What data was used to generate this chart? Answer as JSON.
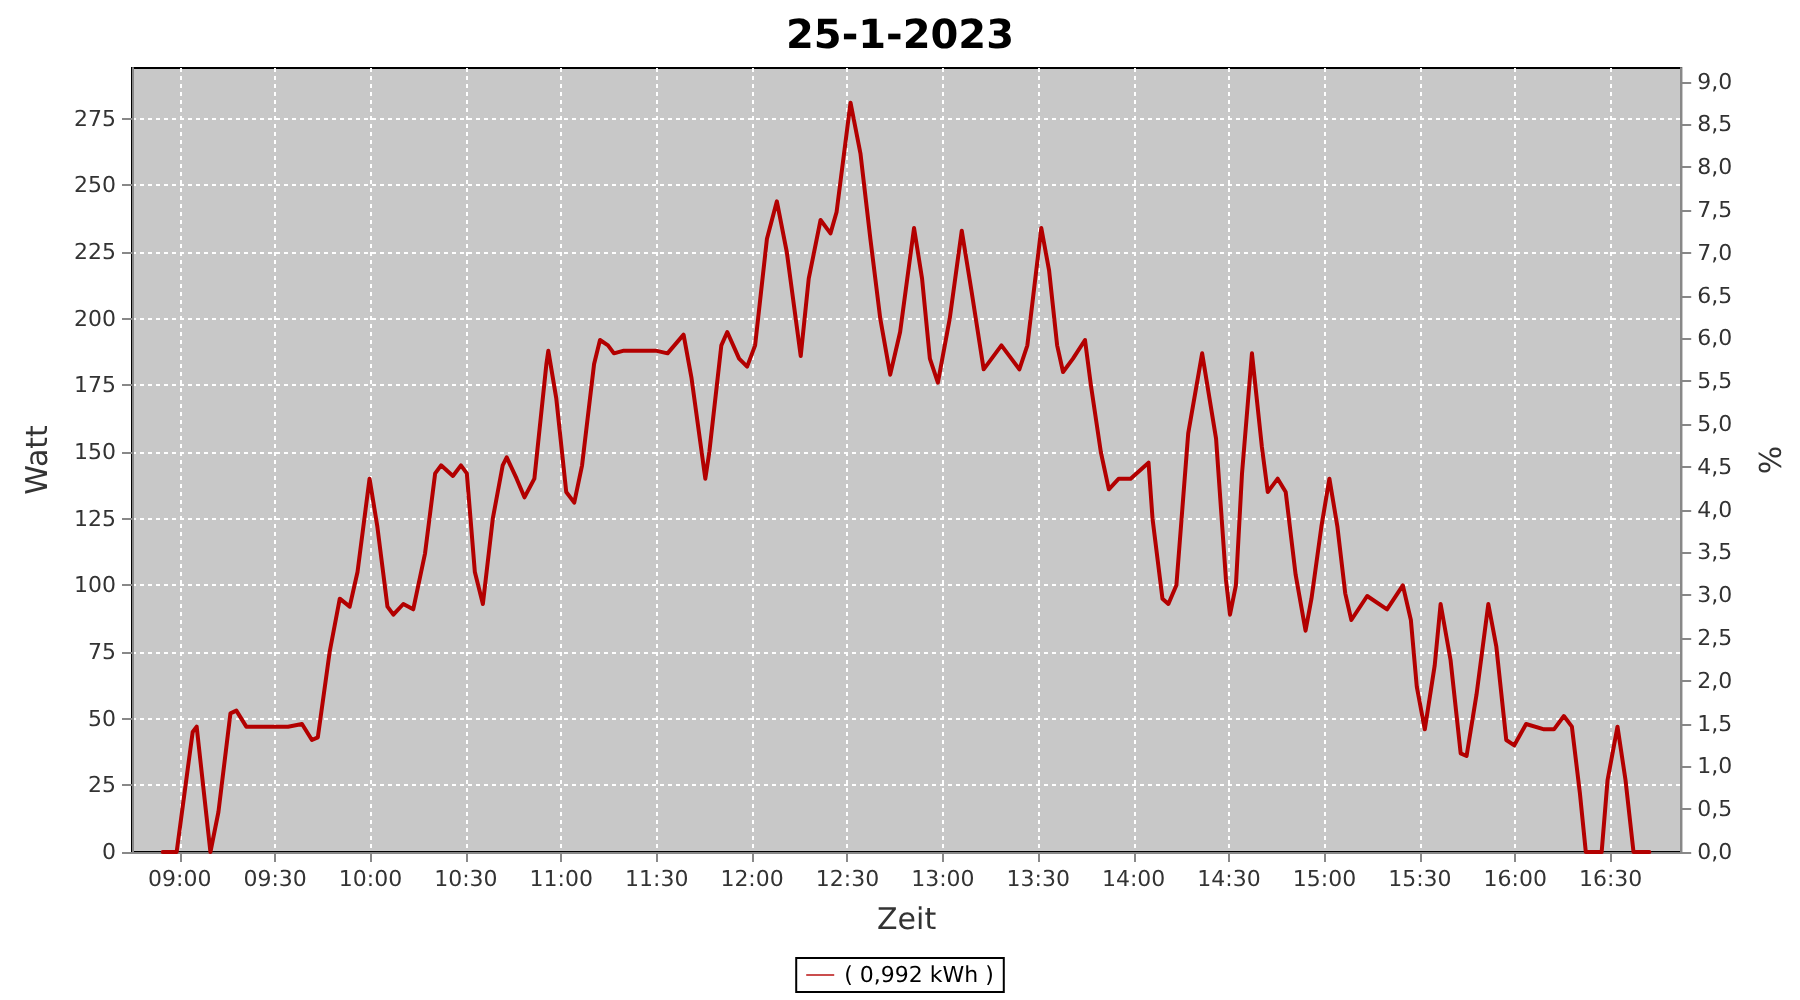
{
  "chart_data": {
    "type": "line",
    "title": "25-1-2023",
    "xlabel": "Zeit",
    "ylabel": "Watt",
    "y2label": "%",
    "xlim": [
      8.75,
      16.87
    ],
    "xticks": [
      {
        "value": 9,
        "label": "09:00"
      },
      {
        "value": 9.5,
        "label": "09:30"
      },
      {
        "value": 10,
        "label": "10:00"
      },
      {
        "value": 10.5,
        "label": "10:30"
      },
      {
        "value": 11,
        "label": "11:00"
      },
      {
        "value": 11.5,
        "label": "11:30"
      },
      {
        "value": 12,
        "label": "12:00"
      },
      {
        "value": 12.5,
        "label": "12:30"
      },
      {
        "value": 13,
        "label": "13:00"
      },
      {
        "value": 13.5,
        "label": "13:30"
      },
      {
        "value": 14,
        "label": "14:00"
      },
      {
        "value": 14.5,
        "label": "14:30"
      },
      {
        "value": 15,
        "label": "15:00"
      },
      {
        "value": 15.5,
        "label": "15:30"
      },
      {
        "value": 16,
        "label": "16:00"
      },
      {
        "value": 16.5,
        "label": "16:30"
      }
    ],
    "ylim": [
      0,
      294
    ],
    "yticks": [
      0,
      25,
      50,
      75,
      100,
      125,
      150,
      175,
      200,
      225,
      250,
      275
    ],
    "y2lim": [
      0,
      9.16
    ],
    "y2ticks": [
      {
        "value": 0,
        "label": "0,0"
      },
      {
        "value": 0.5,
        "label": "0,5"
      },
      {
        "value": 1,
        "label": "1,0"
      },
      {
        "value": 1.5,
        "label": "1,5"
      },
      {
        "value": 2,
        "label": "2,0"
      },
      {
        "value": 2.5,
        "label": "2,5"
      },
      {
        "value": 3,
        "label": "3,0"
      },
      {
        "value": 3.5,
        "label": "3,5"
      },
      {
        "value": 4,
        "label": "4,0"
      },
      {
        "value": 4.5,
        "label": "4,5"
      },
      {
        "value": 5,
        "label": "5,0"
      },
      {
        "value": 5.5,
        "label": "5,5"
      },
      {
        "value": 6,
        "label": "6,0"
      },
      {
        "value": 6.5,
        "label": "6,5"
      },
      {
        "value": 7,
        "label": "7,0"
      },
      {
        "value": 7.5,
        "label": "7,5"
      },
      {
        "value": 8,
        "label": "8,0"
      },
      {
        "value": 8.5,
        "label": "8,5"
      },
      {
        "value": 9,
        "label": "9,0"
      }
    ],
    "grid": true,
    "legend": "bottom",
    "marker": "none",
    "line_style": "solid",
    "series": [
      {
        "name": "( 0,992 kWh )",
        "color": "#b30000",
        "x": [
          8.911,
          8.984,
          9.068,
          9.089,
          9.161,
          9.203,
          9.266,
          9.297,
          9.349,
          9.411,
          9.568,
          9.641,
          9.693,
          9.724,
          9.786,
          9.839,
          9.891,
          9.932,
          9.995,
          10.036,
          10.089,
          10.12,
          10.172,
          10.224,
          10.286,
          10.339,
          10.37,
          10.432,
          10.474,
          10.505,
          10.547,
          10.589,
          10.641,
          10.693,
          10.714,
          10.766,
          10.807,
          10.859,
          10.922,
          10.932,
          10.974,
          11.026,
          11.068,
          11.109,
          11.172,
          11.203,
          11.245,
          11.276,
          11.328,
          11.495,
          11.557,
          11.641,
          11.682,
          11.755,
          11.776,
          11.839,
          11.87,
          11.932,
          11.974,
          12.016,
          12.078,
          12.13,
          12.182,
          12.255,
          12.297,
          12.359,
          12.411,
          12.443,
          12.516,
          12.568,
          12.62,
          12.672,
          12.724,
          12.776,
          12.849,
          12.891,
          12.932,
          12.974,
          13.036,
          13.099,
          13.151,
          13.214,
          13.307,
          13.359,
          13.401,
          13.443,
          13.516,
          13.557,
          13.599,
          13.63,
          13.682,
          13.745,
          13.776,
          13.828,
          13.87,
          13.922,
          13.984,
          14.078,
          14.099,
          14.151,
          14.182,
          14.224,
          14.286,
          14.359,
          14.432,
          14.484,
          14.505,
          14.536,
          14.568,
          14.62,
          14.672,
          14.703,
          14.755,
          14.797,
          14.849,
          14.901,
          14.932,
          14.984,
          15.026,
          15.068,
          15.109,
          15.141,
          15.224,
          15.328,
          15.411,
          15.453,
          15.484,
          15.526,
          15.578,
          15.609,
          15.661,
          15.714,
          15.745,
          15.797,
          15.859,
          15.901,
          15.953,
          15.995,
          16.057,
          16.151,
          16.203,
          16.255,
          16.297,
          16.339,
          16.37,
          16.453,
          16.484,
          16.536,
          16.578,
          16.62,
          16.703
        ],
        "values": [
          0,
          0,
          45,
          47,
          0,
          15,
          52,
          53,
          47,
          47,
          47,
          48,
          42,
          43,
          75,
          95,
          92,
          105,
          140,
          122,
          92,
          89,
          93,
          91,
          112,
          142,
          145,
          141,
          145,
          142,
          105,
          93,
          125,
          145,
          148,
          140,
          133,
          140,
          183,
          188,
          170,
          135,
          131,
          145,
          183,
          192,
          190,
          187,
          188,
          188,
          187,
          194,
          178,
          140,
          150,
          190,
          195,
          185,
          182,
          190,
          230,
          244,
          225,
          186,
          215,
          237,
          232,
          240,
          281,
          262,
          230,
          200,
          179,
          195,
          234,
          215,
          185,
          176,
          200,
          233,
          210,
          181,
          190,
          185,
          181,
          190,
          234,
          218,
          190,
          180,
          185,
          192,
          175,
          150,
          136,
          140,
          140,
          146,
          125,
          95,
          93,
          100,
          157,
          187,
          155,
          102,
          89,
          100,
          142,
          187,
          152,
          135,
          140,
          135,
          104,
          83,
          95,
          122,
          140,
          122,
          97,
          87,
          96,
          91,
          100,
          87,
          62,
          46,
          70,
          93,
          72,
          37,
          36,
          59,
          93,
          77,
          42,
          40,
          48,
          46,
          46,
          51,
          47,
          22,
          0,
          0,
          27,
          47,
          27,
          0,
          0
        ]
      }
    ]
  }
}
